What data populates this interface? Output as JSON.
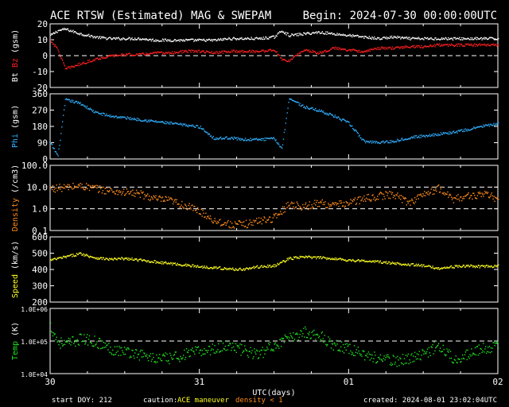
{
  "header": {
    "title": "ACE RTSW (Estimated) MAG & SWEPAM",
    "begin": "Begin: 2024-07-30 00:00:00UTC"
  },
  "footer": {
    "start_doy": "start DOY: 212",
    "caution_label": "caution:",
    "maneuver_label": "ACE maneuver",
    "density_label": "density < 1",
    "created": "created: 2024-08-01 23:02:04UTC"
  },
  "colors": {
    "bt": "#ffffff",
    "bz": "#ff2020",
    "phi": "#30b0ff",
    "density": "#ff8c1a",
    "speed": "#ffff20",
    "temp": "#20e020",
    "axis": "#ffffff",
    "background": "#000000",
    "ref_line": "#ffffff"
  },
  "chart_data": [
    {
      "type": "scatter",
      "panel": "bt_bz",
      "ylabel_parts": [
        "Bt",
        "Bz",
        "(gsm)"
      ],
      "ylim": [
        -20,
        20
      ],
      "yticks": [
        -20,
        -10,
        0,
        10,
        20
      ],
      "ytick_labels": [
        "-20",
        "-10",
        "0",
        "10",
        "20"
      ],
      "ref_lines": [
        0
      ],
      "series": [
        {
          "name": "Bt",
          "color": "#ffffff",
          "x": [
            0,
            0.05,
            0.1,
            0.2,
            0.3,
            0.4,
            0.5,
            0.6,
            0.7,
            0.8,
            0.9,
            1.0,
            1.1,
            1.2,
            1.3,
            1.4,
            1.5,
            1.55,
            1.6,
            1.7,
            1.8,
            1.9,
            2.0,
            2.1,
            2.2,
            2.3,
            2.4,
            2.5,
            2.6,
            2.7,
            2.8,
            2.9,
            3.0
          ],
          "y": [
            13,
            16,
            17,
            14,
            12,
            11,
            11,
            11,
            10,
            10,
            10,
            10,
            10,
            11,
            11,
            11,
            12,
            16,
            13,
            14,
            15,
            14,
            13,
            12,
            11,
            12,
            11,
            11,
            11,
            11,
            11,
            11,
            11
          ]
        },
        {
          "name": "Bz",
          "color": "#ff2020",
          "x": [
            0,
            0.05,
            0.1,
            0.2,
            0.3,
            0.4,
            0.5,
            0.6,
            0.7,
            0.8,
            0.9,
            1.0,
            1.1,
            1.2,
            1.3,
            1.4,
            1.5,
            1.55,
            1.6,
            1.7,
            1.8,
            1.9,
            2.0,
            2.1,
            2.2,
            2.3,
            2.4,
            2.5,
            2.6,
            2.7,
            2.8,
            2.9,
            3.0
          ],
          "y": [
            10,
            4,
            -8,
            -5,
            -2,
            0,
            1,
            1,
            2,
            2,
            3,
            3,
            2,
            3,
            3,
            3,
            4,
            -2,
            -3,
            4,
            2,
            5,
            4,
            3,
            5,
            5,
            6,
            6,
            7,
            7,
            7,
            7,
            7
          ]
        }
      ]
    },
    {
      "type": "scatter",
      "panel": "phi",
      "ylabel_parts": [
        "Phi",
        "(gsm)"
      ],
      "ylim": [
        0,
        360
      ],
      "yticks": [
        0,
        90,
        180,
        270,
        360
      ],
      "ytick_labels": [
        "0",
        "90",
        "180",
        "270",
        "360"
      ],
      "series": [
        {
          "name": "Phi",
          "color": "#30b0ff",
          "x": [
            0,
            0.05,
            0.1,
            0.2,
            0.3,
            0.4,
            0.5,
            0.6,
            0.7,
            0.8,
            0.9,
            1.0,
            1.1,
            1.2,
            1.3,
            1.4,
            1.5,
            1.55,
            1.6,
            1.7,
            1.8,
            1.9,
            2.0,
            2.1,
            2.2,
            2.3,
            2.4,
            2.5,
            2.6,
            2.7,
            2.8,
            2.9,
            3.0
          ],
          "y": [
            90,
            20,
            330,
            310,
            260,
            240,
            230,
            220,
            210,
            200,
            190,
            180,
            115,
            120,
            110,
            110,
            115,
            60,
            340,
            290,
            270,
            240,
            200,
            100,
            95,
            100,
            120,
            130,
            140,
            150,
            165,
            185,
            195
          ]
        }
      ]
    },
    {
      "type": "scatter",
      "panel": "density",
      "ylabel_parts": [
        "Density",
        "(/cm3)"
      ],
      "yscale": "log",
      "ylim": [
        0.1,
        100
      ],
      "yticks": [
        0.1,
        1,
        10,
        100
      ],
      "ytick_labels": [
        "0.1",
        "1.0",
        "10.0",
        "100.0"
      ],
      "ref_lines": [
        1,
        10
      ],
      "series": [
        {
          "name": "Density",
          "color": "#ff8c1a",
          "x": [
            0,
            0.1,
            0.2,
            0.3,
            0.4,
            0.5,
            0.6,
            0.7,
            0.8,
            0.9,
            1.0,
            1.1,
            1.2,
            1.3,
            1.4,
            1.5,
            1.6,
            1.7,
            1.8,
            1.9,
            2.0,
            2.1,
            2.2,
            2.3,
            2.4,
            2.5,
            2.6,
            2.7,
            2.8,
            2.9,
            3.0
          ],
          "y": [
            9,
            10,
            12,
            9,
            7,
            6,
            5,
            3,
            2.5,
            1.5,
            0.8,
            0.3,
            0.2,
            0.2,
            0.3,
            0.4,
            1.8,
            1.3,
            2.0,
            1.5,
            2.0,
            3.0,
            4.0,
            5.0,
            2.0,
            5.0,
            9.0,
            3.0,
            4.0,
            5.0,
            3.0
          ]
        }
      ]
    },
    {
      "type": "scatter",
      "panel": "speed",
      "ylabel_parts": [
        "Speed",
        "(km/s)"
      ],
      "ylim": [
        200,
        600
      ],
      "yticks": [
        200,
        300,
        400,
        500,
        600
      ],
      "ytick_labels": [
        "200",
        "300",
        "400",
        "500",
        "600"
      ],
      "series": [
        {
          "name": "Speed",
          "color": "#ffff20",
          "x": [
            0,
            0.1,
            0.2,
            0.3,
            0.4,
            0.5,
            0.6,
            0.7,
            0.8,
            0.9,
            1.0,
            1.1,
            1.2,
            1.3,
            1.4,
            1.5,
            1.6,
            1.7,
            1.8,
            1.9,
            2.0,
            2.1,
            2.2,
            2.3,
            2.4,
            2.5,
            2.6,
            2.7,
            2.8,
            2.9,
            3.0
          ],
          "y": [
            460,
            480,
            500,
            475,
            465,
            470,
            460,
            450,
            440,
            430,
            420,
            415,
            405,
            405,
            420,
            425,
            470,
            480,
            475,
            470,
            460,
            455,
            450,
            440,
            435,
            425,
            410,
            420,
            425,
            420,
            425
          ]
        }
      ]
    },
    {
      "type": "scatter",
      "panel": "temp",
      "ylabel_parts": [
        "Temp",
        "(K)"
      ],
      "yscale": "log",
      "ylim": [
        10000,
        1000000
      ],
      "yticks": [
        10000,
        100000,
        1000000
      ],
      "ytick_labels": [
        "1.0E+04",
        "1.0E+05",
        "1.0E+06"
      ],
      "ref_lines": [
        100000
      ],
      "xlabel": "UTC(days)",
      "xticks": [
        0,
        1,
        2,
        3
      ],
      "xtick_labels": [
        "30",
        "31",
        "01",
        "02"
      ],
      "series": [
        {
          "name": "Temp",
          "color": "#20e020",
          "x": [
            0,
            0.05,
            0.1,
            0.2,
            0.3,
            0.4,
            0.5,
            0.6,
            0.7,
            0.8,
            0.9,
            1.0,
            1.1,
            1.2,
            1.3,
            1.4,
            1.5,
            1.6,
            1.7,
            1.8,
            1.9,
            2.0,
            2.1,
            2.2,
            2.3,
            2.4,
            2.5,
            2.6,
            2.7,
            2.8,
            2.9,
            3.0
          ],
          "y": [
            300000,
            100000,
            80000,
            120000,
            100000,
            60000,
            50000,
            40000,
            30000,
            30000,
            40000,
            50000,
            60000,
            80000,
            50000,
            40000,
            80000,
            120000,
            200000,
            150000,
            80000,
            60000,
            40000,
            30000,
            25000,
            30000,
            40000,
            80000,
            30000,
            40000,
            60000,
            70000
          ]
        }
      ]
    }
  ]
}
